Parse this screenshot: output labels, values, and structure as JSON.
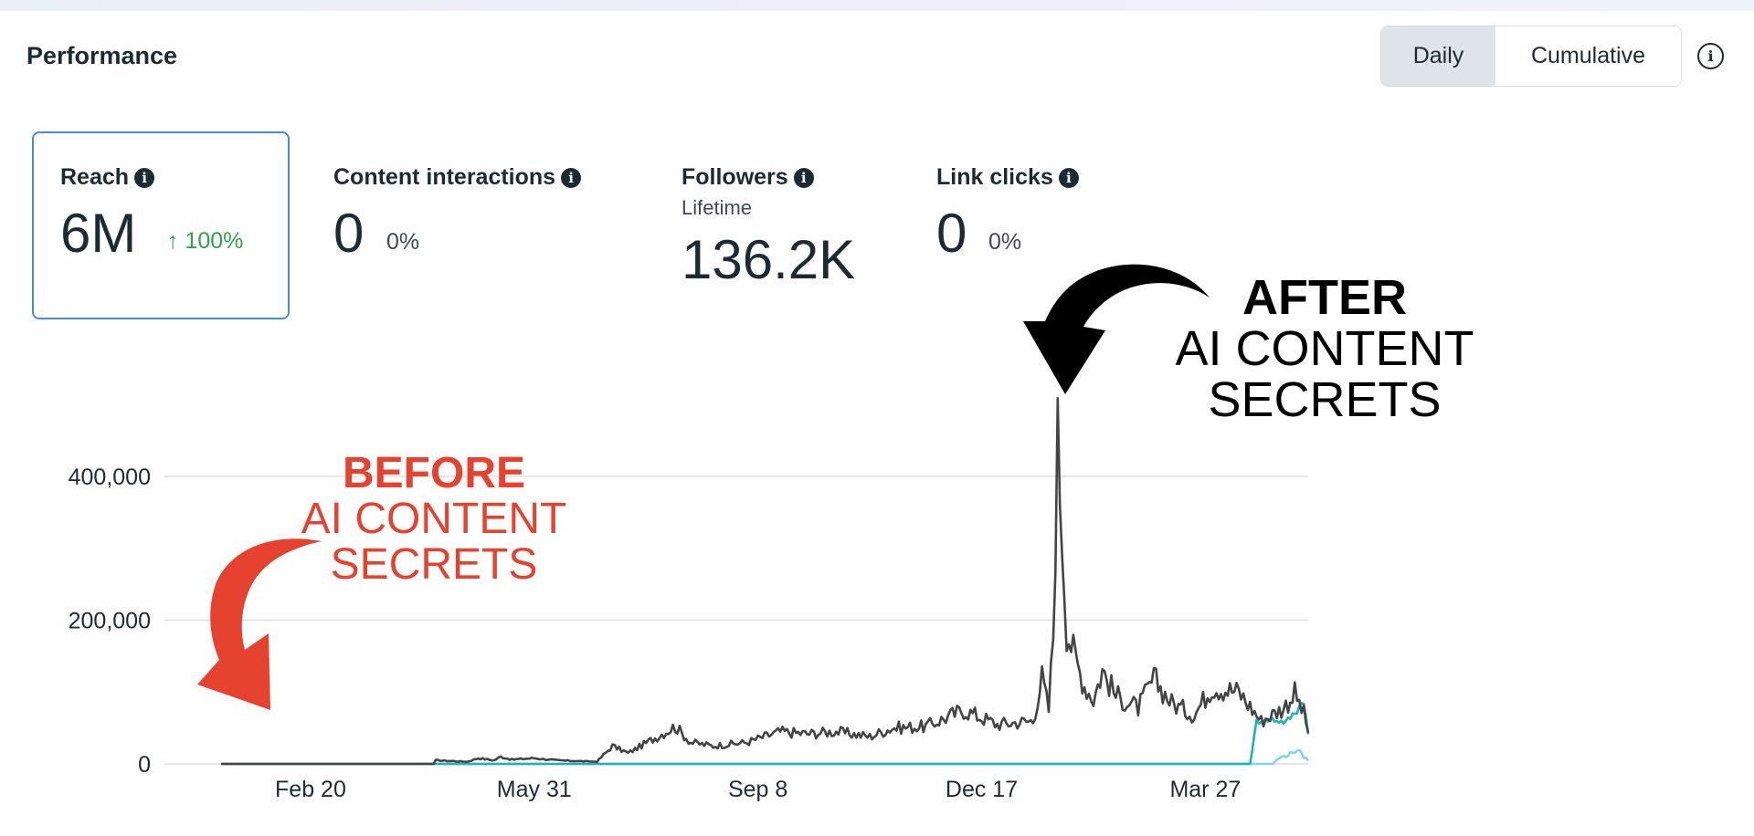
{
  "header": {
    "title": "Performance",
    "toggle": {
      "daily": "Daily",
      "cumulative": "Cumulative"
    },
    "info_icon": "info-icon"
  },
  "metrics": [
    {
      "label": "Reach",
      "value": "6M",
      "change": "↑ 100%",
      "selected": true
    },
    {
      "label": "Content interactions",
      "value": "0",
      "change": "0%"
    },
    {
      "label": "Followers",
      "sublabel": "Lifetime",
      "value": "136.2K"
    },
    {
      "label": "Link clicks",
      "value": "0",
      "change": "0%"
    }
  ],
  "annotations": {
    "before": {
      "line1": "BEFORE",
      "line2": "AI CONTENT",
      "line3": "SECRETS",
      "color": "#e5432f"
    },
    "after": {
      "line1": "AFTER",
      "line2": "AI CONTENT",
      "line3": "SECRETS",
      "color": "#000000"
    }
  },
  "chart_data": {
    "type": "line",
    "title": "",
    "xlabel": "",
    "ylabel": "",
    "ylim": [
      0,
      460000
    ],
    "yticks": [
      0,
      200000,
      400000
    ],
    "ytick_labels": [
      "0",
      "200,000",
      "400,000"
    ],
    "xtick_labels": [
      "Feb 20",
      "May 31",
      "Sep 8",
      "Dec 17",
      "Mar 27"
    ],
    "xtick_index": [
      40,
      140,
      240,
      340,
      440
    ],
    "x_count": 487,
    "grid": true,
    "colors": {
      "main": "#444444",
      "teal": "#1fb1b8",
      "light": "#7fd6ec"
    },
    "series": [
      {
        "values": [
          [
            0,
            0
          ],
          [
            95,
            0
          ],
          [
            96,
            5000
          ],
          [
            110,
            3000
          ],
          [
            115,
            8000
          ],
          [
            122,
            5000
          ],
          [
            125,
            10000
          ],
          [
            130,
            6000
          ],
          [
            140,
            8000
          ],
          [
            150,
            5000
          ],
          [
            168,
            3000
          ],
          [
            175,
            25000
          ],
          [
            182,
            15000
          ],
          [
            195,
            38000
          ],
          [
            203,
            52000
          ],
          [
            210,
            30000
          ],
          [
            220,
            25000
          ],
          [
            235,
            30000
          ],
          [
            250,
            45000
          ],
          [
            262,
            42000
          ],
          [
            275,
            45000
          ],
          [
            290,
            38000
          ],
          [
            300,
            50000
          ],
          [
            315,
            52000
          ],
          [
            332,
            75000
          ],
          [
            347,
            55000
          ],
          [
            363,
            60000
          ],
          [
            367,
            120000
          ],
          [
            370,
            75000
          ],
          [
            372,
            180000
          ],
          [
            374,
            455000
          ],
          [
            378,
            190000
          ],
          [
            382,
            145000
          ],
          [
            386,
            110000
          ],
          [
            390,
            90000
          ],
          [
            394,
            130000
          ],
          [
            400,
            95000
          ],
          [
            410,
            78000
          ],
          [
            417,
            118000
          ],
          [
            425,
            85000
          ],
          [
            435,
            68000
          ],
          [
            443,
            108000
          ],
          [
            455,
            100000
          ],
          [
            465,
            60000
          ],
          [
            475,
            78000
          ],
          [
            480,
            98000
          ],
          [
            484,
            70000
          ],
          [
            486,
            45000
          ]
        ]
      },
      {
        "values": [
          [
            0,
            0
          ],
          [
            460,
            0
          ],
          [
            463,
            60000
          ],
          [
            470,
            62000
          ],
          [
            476,
            58000
          ],
          [
            481,
            75000
          ],
          [
            484,
            90000
          ],
          [
            486,
            40000
          ]
        ]
      },
      {
        "values": [
          [
            0,
            0
          ],
          [
            470,
            0
          ],
          [
            473,
            8000
          ],
          [
            478,
            14000
          ],
          [
            481,
            20000
          ],
          [
            484,
            10000
          ],
          [
            486,
            5000
          ]
        ]
      }
    ]
  }
}
